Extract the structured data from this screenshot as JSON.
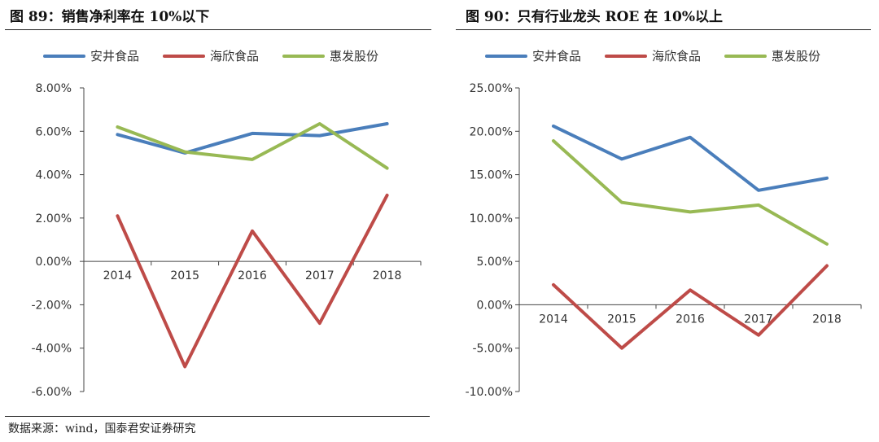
{
  "source_text": "数据来源：wind，国泰君安证券研究",
  "chart_data": [
    {
      "type": "line",
      "title": "图 89：销售净利率在 10%以下",
      "categories": [
        "2014",
        "2015",
        "2016",
        "2017",
        "2018"
      ],
      "ylim": [
        -6,
        8
      ],
      "yticks": [
        8,
        6,
        4,
        2,
        0,
        -2,
        -4,
        -6
      ],
      "ytick_labels": [
        "8.00%",
        "6.00%",
        "4.00%",
        "2.00%",
        "0.00%",
        "-2.00%",
        "-4.00%",
        "-6.00%"
      ],
      "series": [
        {
          "name": "安井食品",
          "color": "#4A7EBB",
          "values": [
            5.85,
            5.0,
            5.9,
            5.8,
            6.35
          ]
        },
        {
          "name": "海欣食品",
          "color": "#BE4B48",
          "values": [
            2.1,
            -4.85,
            1.4,
            -2.85,
            3.05
          ]
        },
        {
          "name": "惠发股份",
          "color": "#98B954",
          "values": [
            6.2,
            5.05,
            4.7,
            6.35,
            4.3
          ]
        }
      ]
    },
    {
      "type": "line",
      "title": "图 90：只有行业龙头 ROE 在 10%以上",
      "categories": [
        "2014",
        "2015",
        "2016",
        "2017",
        "2018"
      ],
      "ylim": [
        -10,
        25
      ],
      "yticks": [
        25,
        20,
        15,
        10,
        5,
        0,
        -5,
        -10
      ],
      "ytick_labels": [
        "25.00%",
        "20.00%",
        "15.00%",
        "10.00%",
        "5.00%",
        "0.00%",
        "-5.00%",
        "-10.00%"
      ],
      "series": [
        {
          "name": "安井食品",
          "color": "#4A7EBB",
          "values": [
            20.6,
            16.8,
            19.3,
            13.2,
            14.6
          ]
        },
        {
          "name": "海欣食品",
          "color": "#BE4B48",
          "values": [
            2.3,
            -5.0,
            1.7,
            -3.5,
            4.5
          ]
        },
        {
          "name": "惠发股份",
          "color": "#98B954",
          "values": [
            18.9,
            11.8,
            10.7,
            11.5,
            7.0
          ]
        }
      ]
    }
  ]
}
